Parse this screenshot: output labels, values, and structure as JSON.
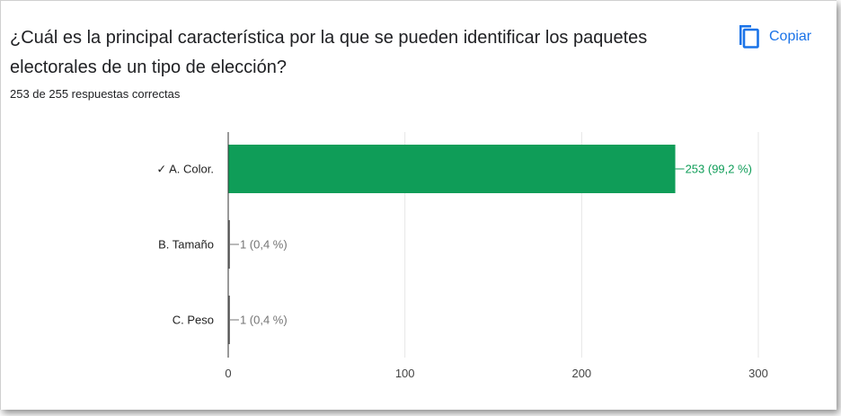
{
  "question": {
    "title": "¿Cuál es la principal característica por la que se pueden identificar los paquetes electorales de un tipo de elección?",
    "summary": "253 de 255 respuestas correctas"
  },
  "copy_button": {
    "label": "Copiar",
    "icon": "copy-icon"
  },
  "colors": {
    "correct": "#0f9d58",
    "incorrect": "#757575",
    "accent": "#1a73e8"
  },
  "chart_data": {
    "type": "bar",
    "orientation": "horizontal",
    "categories": [
      "✓ A. Color.",
      "B. Tamaño",
      "C. Peso"
    ],
    "values": [
      253,
      1,
      1
    ],
    "data_labels": [
      "253 (99,2 %)",
      "1 (0,4 %)",
      "1 (0,4 %)"
    ],
    "correct": [
      true,
      false,
      false
    ],
    "xlim": [
      0,
      300
    ],
    "xticks": [
      0,
      100,
      200,
      300
    ],
    "grid": true,
    "title": "",
    "xlabel": "",
    "ylabel": ""
  }
}
